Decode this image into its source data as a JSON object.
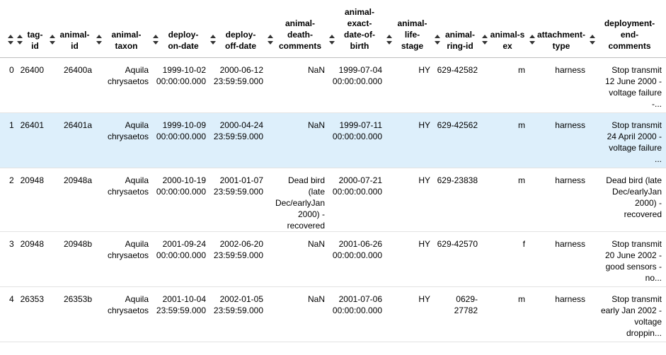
{
  "columns": [
    {
      "label": ""
    },
    {
      "label": "tag-\nid"
    },
    {
      "label": "animal-\nid"
    },
    {
      "label": "animal-\ntaxon"
    },
    {
      "label": "deploy-\non-date"
    },
    {
      "label": "deploy-\noff-date"
    },
    {
      "label": "animal-\ndeath-\ncomments"
    },
    {
      "label": "animal-\nexact-\ndate-of-\nbirth"
    },
    {
      "label": "animal-\nlife-\nstage"
    },
    {
      "label": "animal-\nring-id"
    },
    {
      "label": "animal-sex"
    },
    {
      "label": "attachment-\ntype"
    },
    {
      "label": "deployment-\nend-\ncomments"
    }
  ],
  "rows": [
    {
      "index": "0",
      "tag_id": "26400",
      "animal_id": "26400a",
      "taxon": "Aquila\nchrysaetos",
      "on_date": "1999-10-02\n00:00:00.000",
      "off_date": "2000-06-12\n23:59:59.000",
      "death_comments": "NaN",
      "birth": "1999-07-04\n00:00:00.000",
      "life_stage": "HY",
      "ring_id": "629-42582",
      "sex": "m",
      "attachment": "harness",
      "end_comments": "Stop transmit\n12 June 2000 -\nvoltage failure\n-..."
    },
    {
      "index": "1",
      "tag_id": "26401",
      "animal_id": "26401a",
      "taxon": "Aquila\nchrysaetos",
      "on_date": "1999-10-09\n00:00:00.000",
      "off_date": "2000-04-24\n23:59:59.000",
      "death_comments": "NaN",
      "birth": "1999-07-11\n00:00:00.000",
      "life_stage": "HY",
      "ring_id": "629-42562",
      "sex": "m",
      "attachment": "harness",
      "end_comments": "Stop transmit\n24 April 2000 -\nvoltage failure\n..."
    },
    {
      "index": "2",
      "tag_id": "20948",
      "animal_id": "20948a",
      "taxon": "Aquila\nchrysaetos",
      "on_date": "2000-10-19\n00:00:00.000",
      "off_date": "2001-01-07\n23:59:59.000",
      "death_comments": "Dead bird\n(late\nDec/earlyJan\n2000) -\nrecovered",
      "birth": "2000-07-21\n00:00:00.000",
      "life_stage": "HY",
      "ring_id": "629-23838",
      "sex": "m",
      "attachment": "harness",
      "end_comments": "Dead bird (late\nDec/earlyJan\n2000) -\nrecovered"
    },
    {
      "index": "3",
      "tag_id": "20948",
      "animal_id": "20948b",
      "taxon": "Aquila\nchrysaetos",
      "on_date": "2001-09-24\n00:00:00.000",
      "off_date": "2002-06-20\n23:59:59.000",
      "death_comments": "NaN",
      "birth": "2001-06-26\n00:00:00.000",
      "life_stage": "HY",
      "ring_id": "629-42570",
      "sex": "f",
      "attachment": "harness",
      "end_comments": "Stop transmit\n20 June 2002 -\ngood sensors -\nno..."
    },
    {
      "index": "4",
      "tag_id": "26353",
      "animal_id": "26353b",
      "taxon": "Aquila\nchrysaetos",
      "on_date": "2001-10-04\n23:59:59.000",
      "off_date": "2002-01-05\n23:59:59.000",
      "death_comments": "NaN",
      "birth": "2001-07-06\n00:00:00.000",
      "life_stage": "HY",
      "ring_id": "0629-\n27782",
      "sex": "m",
      "attachment": "harness",
      "end_comments": "Stop transmit\nearly Jan 2002 -\nvoltage\ndroppin..."
    }
  ]
}
